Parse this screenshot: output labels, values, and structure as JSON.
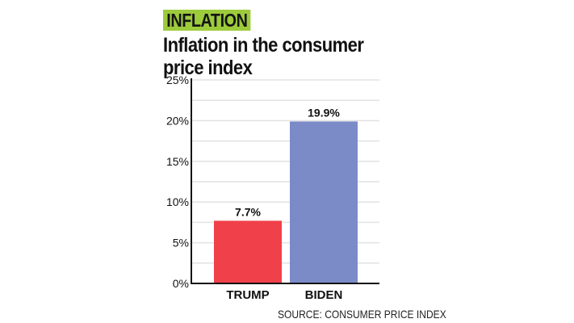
{
  "header": {
    "badge": "INFLATION",
    "title": "Inflation in the consumer price index"
  },
  "footer": {
    "source": "SOURCE: CONSUMER PRICE INDEX"
  },
  "chart_data": {
    "type": "bar",
    "title": "Inflation in the consumer price index",
    "categories": [
      "TRUMP",
      "BIDEN"
    ],
    "values": [
      7.7,
      19.9
    ],
    "data_labels": [
      "7.7%",
      "19.9%"
    ],
    "colors": [
      "#f0404a",
      "#7b8bc7"
    ],
    "xlabel": "",
    "ylabel": "",
    "ylim": [
      0,
      25
    ],
    "yticks": [
      0,
      5,
      10,
      15,
      20,
      25
    ],
    "ytick_labels": [
      "0%",
      "5%",
      "10%",
      "15%",
      "20%",
      "25%"
    ],
    "gridlines": [
      2.5,
      5,
      7.5,
      10,
      12.5,
      15,
      17.5,
      20,
      22.5,
      25
    ],
    "grid": true,
    "legend": "none",
    "source": "SOURCE: CONSUMER PRICE INDEX"
  }
}
